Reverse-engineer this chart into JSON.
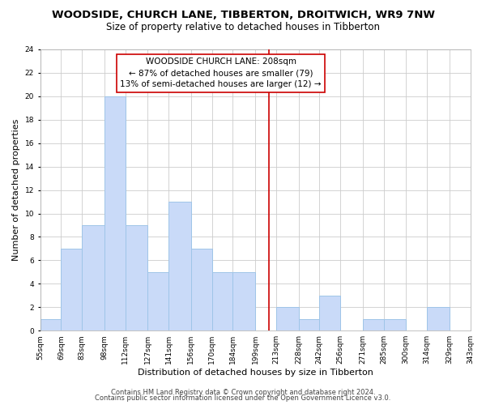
{
  "title": "WOODSIDE, CHURCH LANE, TIBBERTON, DROITWICH, WR9 7NW",
  "subtitle": "Size of property relative to detached houses in Tibberton",
  "xlabel": "Distribution of detached houses by size in Tibberton",
  "ylabel": "Number of detached properties",
  "bar_edges": [
    55,
    69,
    83,
    98,
    112,
    127,
    141,
    156,
    170,
    184,
    199,
    213,
    228,
    242,
    256,
    271,
    285,
    300,
    314,
    329,
    343
  ],
  "bar_labels": [
    "55sqm",
    "69sqm",
    "83sqm",
    "98sqm",
    "112sqm",
    "127sqm",
    "141sqm",
    "156sqm",
    "170sqm",
    "184sqm",
    "199sqm",
    "213sqm",
    "228sqm",
    "242sqm",
    "256sqm",
    "271sqm",
    "285sqm",
    "300sqm",
    "314sqm",
    "329sqm",
    "343sqm"
  ],
  "bar_heights": [
    1,
    7,
    9,
    20,
    9,
    5,
    11,
    7,
    5,
    5,
    0,
    2,
    1,
    3,
    0,
    1,
    1,
    0,
    2,
    0
  ],
  "bar_color": "#c9daf8",
  "bar_edge_color": "#9fc5e8",
  "reference_line_x": 208,
  "reference_line_color": "#cc0000",
  "ylim": [
    0,
    24
  ],
  "yticks": [
    0,
    2,
    4,
    6,
    8,
    10,
    12,
    14,
    16,
    18,
    20,
    22,
    24
  ],
  "annotation_title": "WOODSIDE CHURCH LANE: 208sqm",
  "annotation_line1": "← 87% of detached houses are smaller (79)",
  "annotation_line2": "13% of semi-detached houses are larger (12) →",
  "footer_line1": "Contains HM Land Registry data © Crown copyright and database right 2024.",
  "footer_line2": "Contains public sector information licensed under the Open Government Licence v3.0.",
  "background_color": "#ffffff",
  "grid_color": "#cccccc",
  "title_fontsize": 9.5,
  "subtitle_fontsize": 8.5,
  "axis_label_fontsize": 8,
  "tick_fontsize": 6.5,
  "annotation_fontsize": 7.5,
  "footer_fontsize": 6
}
